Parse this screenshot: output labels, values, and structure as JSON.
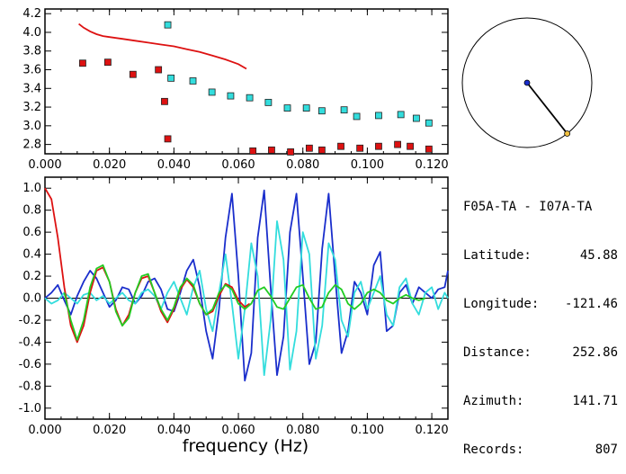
{
  "station_pair": "F05A-TA - I07A-TA",
  "info_rows": [
    {
      "key": "Latitude:",
      "value": "45.88"
    },
    {
      "key": "Longitude:",
      "value": "-121.46"
    },
    {
      "key": "Distance:",
      "value": "252.86"
    },
    {
      "key": "Azimuth:",
      "value": "141.71"
    },
    {
      "key": "Records:",
      "value": "807"
    }
  ],
  "azimuth_deg": 141.71,
  "colors": {
    "red": "#dd1111",
    "cyan": "#33dddd",
    "blue": "#1a2ecc",
    "green": "#22cc22",
    "axis": "#000000"
  },
  "chart_data": [
    {
      "type": "scatter",
      "xlabel": "",
      "ylabel": "",
      "xlim": [
        0.0,
        0.125
      ],
      "ylim": [
        2.7,
        4.25
      ],
      "xticks": [
        "0.000",
        "0.020",
        "0.040",
        "0.060",
        "0.080",
        "0.100",
        "0.120"
      ],
      "yticks": [
        "2.8",
        "3.0",
        "3.2",
        "3.4",
        "3.6",
        "3.8",
        "4.0",
        "4.2"
      ],
      "series": [
        {
          "color": "red",
          "kind": "markers",
          "x": [
            0.0117,
            0.0195,
            0.0273,
            0.0352,
            0.0371,
            0.0381,
            0.0586,
            0.0645,
            0.0703,
            0.0762,
            0.082,
            0.0859,
            0.0918,
            0.0977,
            0.1035,
            0.1094,
            0.1133,
            0.1191
          ],
          "y": [
            3.67,
            3.68,
            3.55,
            3.6,
            3.26,
            2.86,
            2.69,
            2.73,
            2.74,
            2.72,
            2.76,
            2.74,
            2.78,
            2.76,
            2.78,
            2.8,
            2.78,
            2.75
          ]
        },
        {
          "color": "cyan",
          "kind": "markers",
          "x": [
            0.0381,
            0.0391,
            0.0459,
            0.0518,
            0.0576,
            0.0635,
            0.0693,
            0.0752,
            0.0811,
            0.0859,
            0.0928,
            0.0967,
            0.1035,
            0.1104,
            0.1152,
            0.1191
          ],
          "y": [
            4.08,
            3.51,
            3.48,
            3.36,
            3.32,
            3.3,
            3.25,
            3.19,
            3.19,
            3.16,
            3.17,
            3.1,
            3.11,
            3.12,
            3.08,
            3.03
          ]
        },
        {
          "color": "red",
          "kind": "line",
          "x": [
            0.0105,
            0.012,
            0.014,
            0.016,
            0.018,
            0.02,
            0.024,
            0.028,
            0.032,
            0.036,
            0.04,
            0.044,
            0.048,
            0.052,
            0.056,
            0.06,
            0.0625
          ],
          "y": [
            4.09,
            4.05,
            4.01,
            3.98,
            3.96,
            3.95,
            3.93,
            3.91,
            3.89,
            3.87,
            3.85,
            3.82,
            3.79,
            3.75,
            3.71,
            3.66,
            3.61
          ]
        }
      ]
    },
    {
      "type": "line",
      "xlabel": "frequency (Hz)",
      "ylabel": "",
      "xlim": [
        0.0,
        0.125
      ],
      "ylim": [
        -1.1,
        1.1
      ],
      "xticks": [
        "0.000",
        "0.020",
        "0.040",
        "0.060",
        "0.080",
        "0.100",
        "0.120"
      ],
      "yticks": [
        "-1.0",
        "-0.8",
        "-0.6",
        "-0.4",
        "-0.2",
        "0.0",
        "0.2",
        "0.4",
        "0.6",
        "0.8",
        "1.0"
      ],
      "series": [
        {
          "color": "blue",
          "x": [
            0.0,
            0.002,
            0.004,
            0.006,
            0.008,
            0.01,
            0.012,
            0.014,
            0.016,
            0.018,
            0.02,
            0.022,
            0.024,
            0.026,
            0.028,
            0.03,
            0.032,
            0.034,
            0.036,
            0.038,
            0.04,
            0.042,
            0.044,
            0.046,
            0.048,
            0.05,
            0.052,
            0.054,
            0.056,
            0.058,
            0.06,
            0.062,
            0.064,
            0.066,
            0.068,
            0.07,
            0.072,
            0.074,
            0.076,
            0.078,
            0.08,
            0.082,
            0.084,
            0.086,
            0.088,
            0.09,
            0.092,
            0.094,
            0.096,
            0.098,
            0.1,
            0.102,
            0.104,
            0.106,
            0.108,
            0.11,
            0.112,
            0.114,
            0.116,
            0.118,
            0.12,
            0.122,
            0.124,
            0.125
          ],
          "y": [
            0.0,
            0.05,
            0.12,
            -0.02,
            -0.15,
            0.02,
            0.15,
            0.25,
            0.18,
            0.05,
            -0.08,
            -0.02,
            0.1,
            0.08,
            -0.05,
            0.02,
            0.15,
            0.18,
            0.08,
            -0.1,
            -0.12,
            0.05,
            0.25,
            0.35,
            0.1,
            -0.3,
            -0.55,
            -0.1,
            0.55,
            0.95,
            0.2,
            -0.75,
            -0.5,
            0.55,
            0.98,
            0.1,
            -0.7,
            -0.35,
            0.6,
            0.95,
            0.2,
            -0.6,
            -0.4,
            0.45,
            0.95,
            0.2,
            -0.5,
            -0.3,
            0.15,
            0.05,
            -0.15,
            0.3,
            0.42,
            -0.3,
            -0.25,
            0.05,
            0.12,
            -0.05,
            0.1,
            0.05,
            0.0,
            0.08,
            0.1,
            0.25
          ]
        },
        {
          "color": "cyan",
          "x": [
            0.0,
            0.002,
            0.004,
            0.006,
            0.008,
            0.01,
            0.012,
            0.014,
            0.016,
            0.018,
            0.02,
            0.022,
            0.024,
            0.026,
            0.028,
            0.03,
            0.032,
            0.034,
            0.036,
            0.038,
            0.04,
            0.042,
            0.044,
            0.046,
            0.048,
            0.05,
            0.052,
            0.054,
            0.056,
            0.058,
            0.06,
            0.062,
            0.064,
            0.066,
            0.068,
            0.07,
            0.072,
            0.074,
            0.076,
            0.078,
            0.08,
            0.082,
            0.084,
            0.086,
            0.088,
            0.09,
            0.092,
            0.094,
            0.096,
            0.098,
            0.1,
            0.102,
            0.104,
            0.106,
            0.108,
            0.11,
            0.112,
            0.114,
            0.116,
            0.118,
            0.12,
            0.122,
            0.124,
            0.125
          ],
          "y": [
            0.0,
            -0.05,
            -0.02,
            0.05,
            0.0,
            -0.05,
            0.03,
            0.05,
            -0.02,
            0.02,
            -0.05,
            0.0,
            0.05,
            -0.02,
            -0.05,
            0.05,
            0.08,
            0.02,
            -0.1,
            0.05,
            0.15,
            0.0,
            -0.15,
            0.1,
            0.25,
            -0.1,
            -0.3,
            0.05,
            0.4,
            -0.05,
            -0.55,
            -0.1,
            0.5,
            0.2,
            -0.7,
            -0.2,
            0.7,
            0.35,
            -0.65,
            -0.3,
            0.6,
            0.4,
            -0.55,
            -0.25,
            0.5,
            0.35,
            -0.2,
            -0.35,
            0.05,
            0.15,
            -0.1,
            0.05,
            0.2,
            -0.15,
            -0.25,
            0.1,
            0.18,
            -0.05,
            -0.15,
            0.05,
            0.1,
            -0.1,
            0.05,
            0.0
          ]
        },
        {
          "color": "red",
          "x": [
            0.0,
            0.002,
            0.004,
            0.006,
            0.008,
            0.01,
            0.012,
            0.014,
            0.016,
            0.018,
            0.02,
            0.022,
            0.024,
            0.026,
            0.028,
            0.03,
            0.032,
            0.034,
            0.036,
            0.038,
            0.04,
            0.042,
            0.044,
            0.046,
            0.048,
            0.05,
            0.052,
            0.054,
            0.056,
            0.058,
            0.06,
            0.062,
            0.0635
          ],
          "y": [
            1.0,
            0.9,
            0.55,
            0.1,
            -0.25,
            -0.4,
            -0.25,
            0.05,
            0.25,
            0.28,
            0.15,
            -0.1,
            -0.25,
            -0.15,
            0.05,
            0.18,
            0.2,
            0.05,
            -0.12,
            -0.22,
            -0.1,
            0.08,
            0.17,
            0.1,
            -0.05,
            -0.15,
            -0.12,
            0.02,
            0.13,
            0.1,
            -0.02,
            -0.08,
            -0.05
          ]
        },
        {
          "color": "green",
          "x": [
            0.006,
            0.008,
            0.01,
            0.012,
            0.014,
            0.016,
            0.018,
            0.02,
            0.022,
            0.024,
            0.026,
            0.028,
            0.03,
            0.032,
            0.034,
            0.036,
            0.038,
            0.04,
            0.042,
            0.044,
            0.046,
            0.048,
            0.05,
            0.052,
            0.054,
            0.056,
            0.058,
            0.06,
            0.062,
            0.064,
            0.066,
            0.068,
            0.07,
            0.072,
            0.074,
            0.076,
            0.078,
            0.08,
            0.082,
            0.084,
            0.086,
            0.088,
            0.09,
            0.092,
            0.094,
            0.096,
            0.098,
            0.1,
            0.102,
            0.104,
            0.106,
            0.108,
            0.11,
            0.112,
            0.114,
            0.116,
            0.118
          ],
          "y": [
            0.05,
            -0.2,
            -0.38,
            -0.2,
            0.1,
            0.27,
            0.3,
            0.15,
            -0.12,
            -0.25,
            -0.18,
            0.05,
            0.2,
            0.22,
            0.05,
            -0.1,
            -0.2,
            -0.08,
            0.1,
            0.18,
            0.12,
            -0.05,
            -0.15,
            -0.1,
            0.05,
            0.12,
            0.08,
            -0.05,
            -0.1,
            -0.05,
            0.07,
            0.1,
            0.02,
            -0.08,
            -0.1,
            0.0,
            0.1,
            0.12,
            0.0,
            -0.1,
            -0.08,
            0.05,
            0.12,
            0.08,
            -0.05,
            -0.1,
            -0.05,
            0.05,
            0.08,
            0.05,
            -0.02,
            -0.05,
            0.0,
            0.03,
            0.0,
            -0.02,
            0.0
          ]
        }
      ]
    }
  ]
}
